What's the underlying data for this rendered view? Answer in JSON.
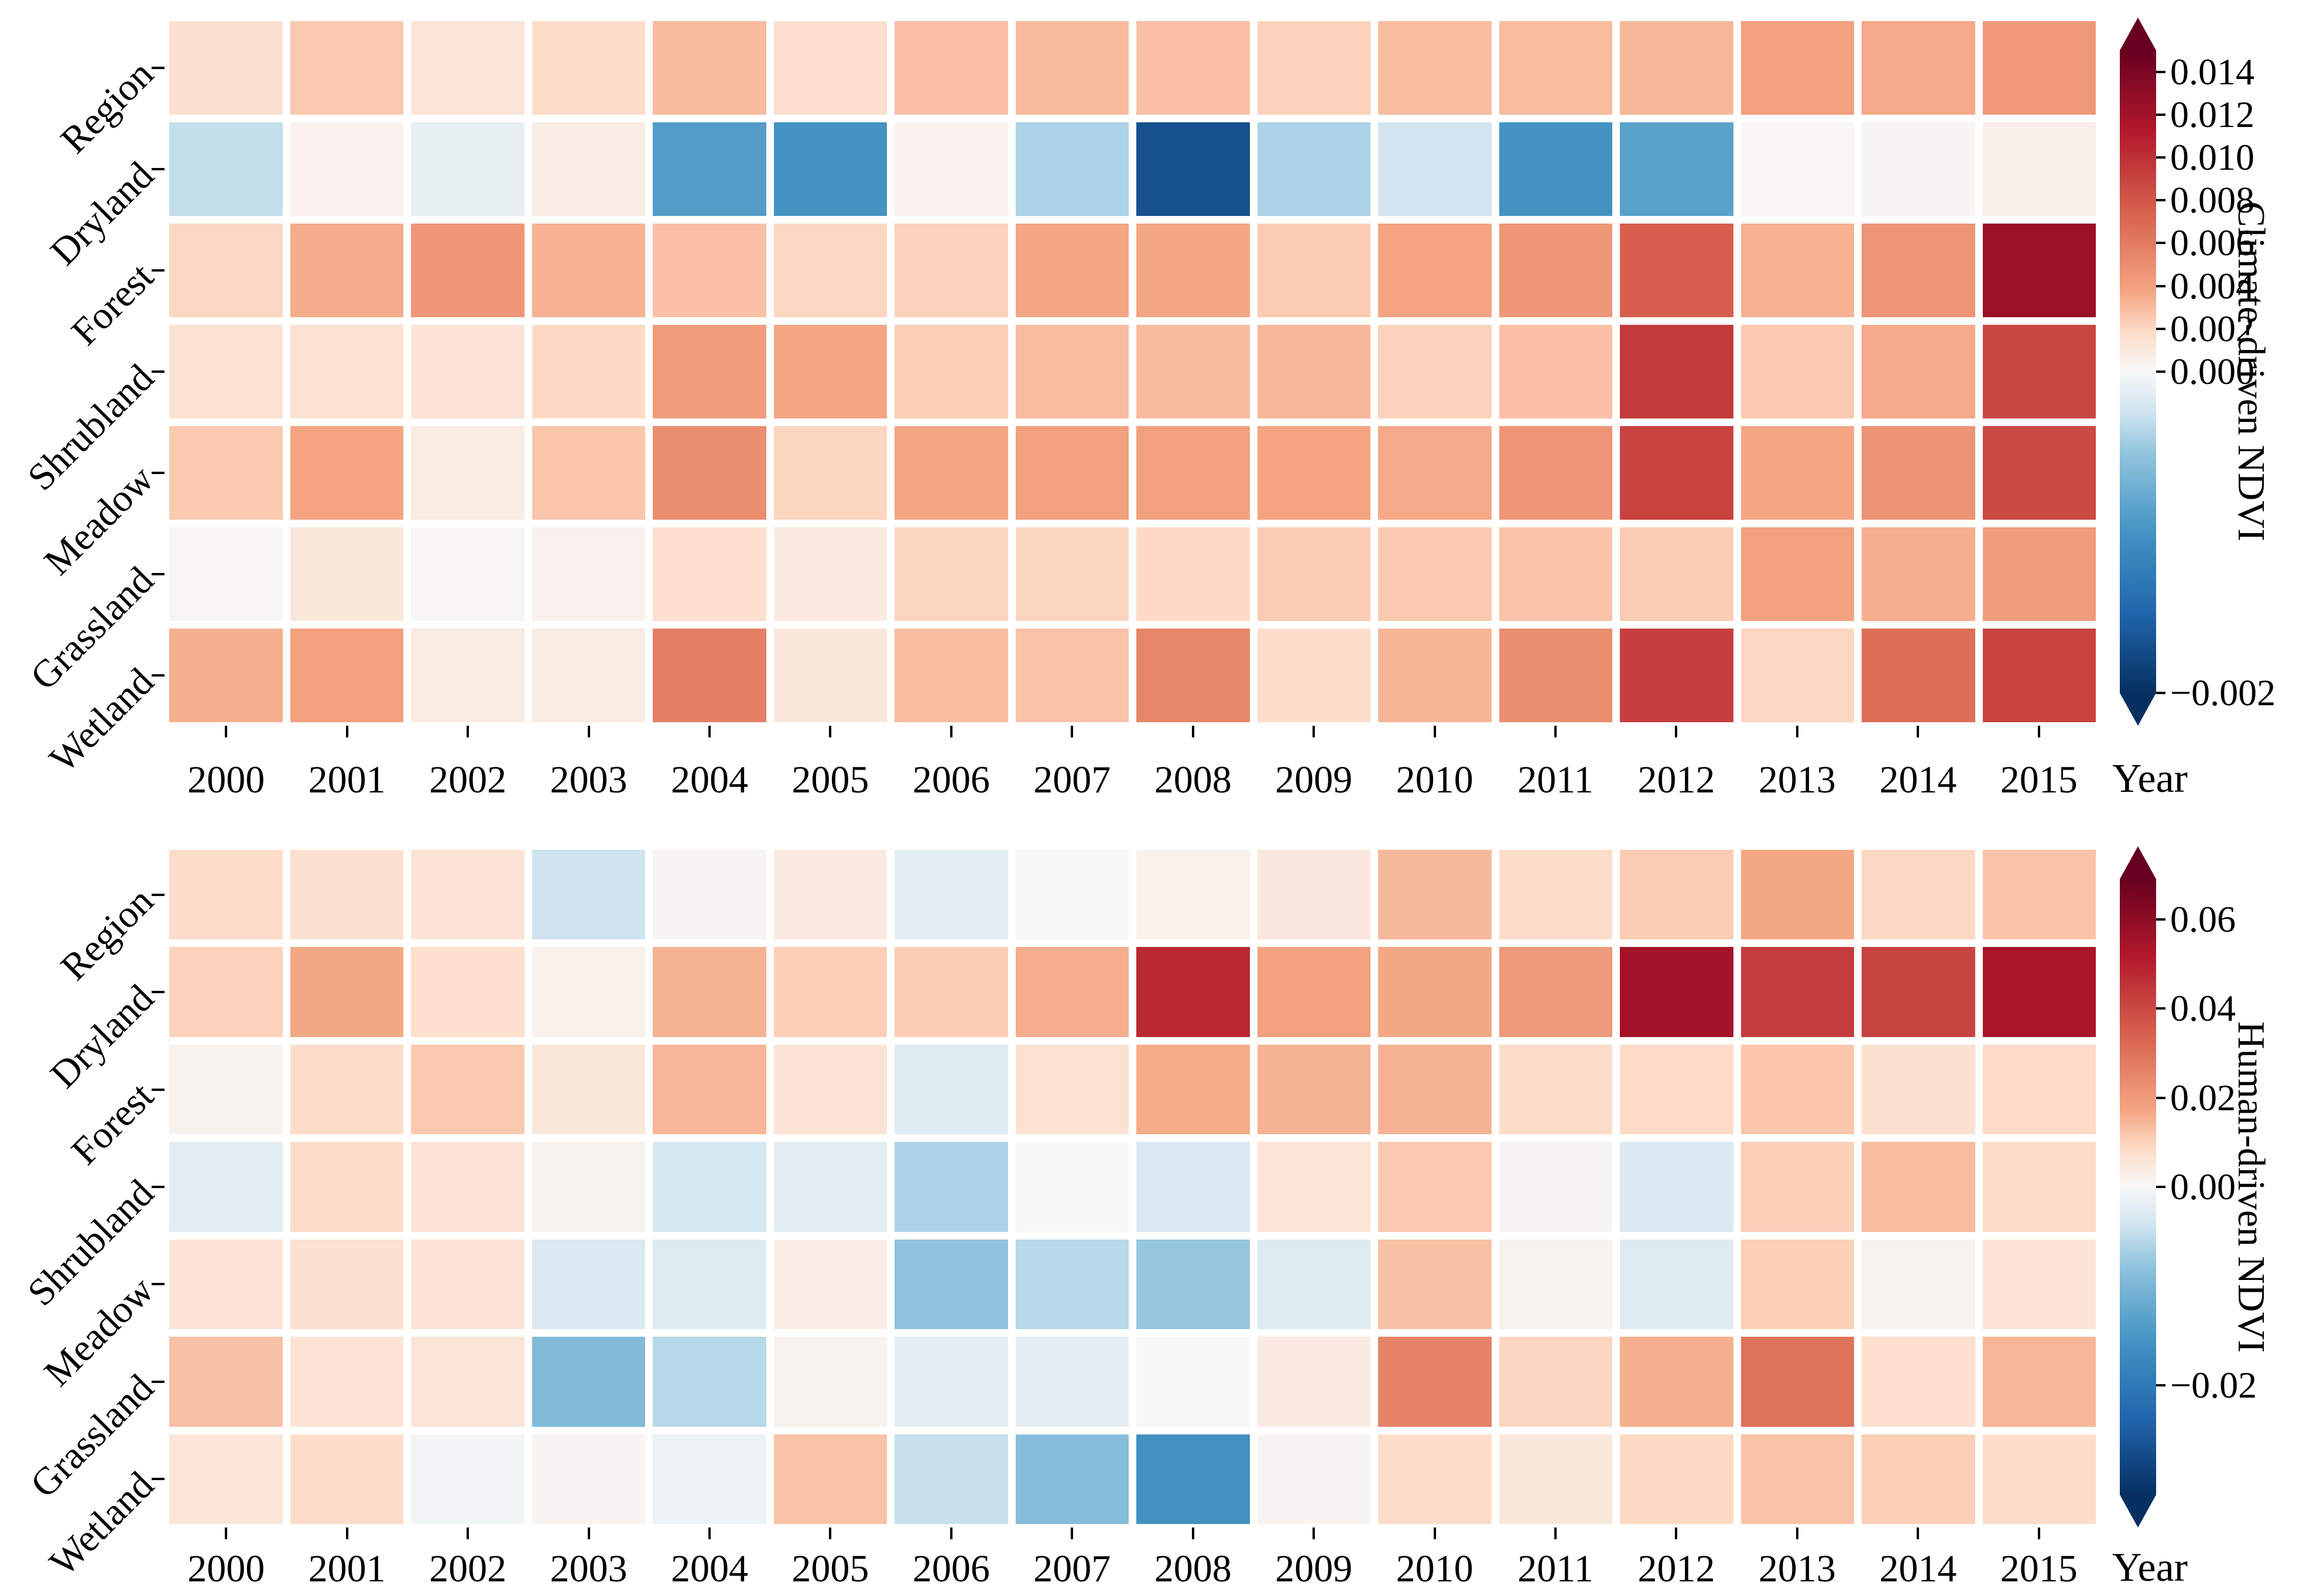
{
  "palette": {
    "colormap": "RdBu_r",
    "background": "#ffffff",
    "text_color": "#000000",
    "anchors": [
      {
        "t": 0.0,
        "color": "#053061"
      },
      {
        "t": 0.125,
        "color": "#2166ac"
      },
      {
        "t": 0.25,
        "color": "#4393c3"
      },
      {
        "t": 0.375,
        "color": "#92c5de"
      },
      {
        "t": 0.4375,
        "color": "#d1e5f0"
      },
      {
        "t": 0.5,
        "color": "#f7f7f7"
      },
      {
        "t": 0.5625,
        "color": "#fddbc7"
      },
      {
        "t": 0.625,
        "color": "#f4a582"
      },
      {
        "t": 0.75,
        "color": "#d6604d"
      },
      {
        "t": 0.875,
        "color": "#b2182b"
      },
      {
        "t": 1.0,
        "color": "#67001f"
      }
    ]
  },
  "chart_data": [
    {
      "type": "heatmap",
      "title": "",
      "xlabel": "Year",
      "x": [
        "2000",
        "2001",
        "2002",
        "2003",
        "2004",
        "2005",
        "2006",
        "2007",
        "2008",
        "2009",
        "2010",
        "2011",
        "2012",
        "2013",
        "2014",
        "2015"
      ],
      "rows": [
        "Region",
        "Dryland",
        "Forest",
        "Shrubland",
        "Meadow",
        "Grassland",
        "Wetland"
      ],
      "series": [
        {
          "name": "Region",
          "values": [
            0.0015,
            0.0025,
            0.0012,
            0.0018,
            0.003,
            0.0016,
            0.0028,
            0.003,
            0.0028,
            0.0022,
            0.0029,
            0.0029,
            0.0031,
            0.004,
            0.0036,
            0.0044
          ]
        },
        {
          "name": "Dryland",
          "values": [
            -0.0003,
            0.0004,
            -0.0001,
            0.0007,
            -0.0009,
            -0.001,
            0.0004,
            -0.0004,
            -0.0017,
            -0.0004,
            -0.00025,
            -0.001,
            -0.00085,
            0.0001,
            0.00015,
            0.0006
          ]
        },
        {
          "name": "Forest",
          "values": [
            0.002,
            0.0035,
            0.0045,
            0.0033,
            0.0028,
            0.002,
            0.0022,
            0.0037,
            0.0037,
            0.0024,
            0.0038,
            0.0045,
            0.0075,
            0.0033,
            0.0046,
            0.0125
          ]
        },
        {
          "name": "Shrubland",
          "values": [
            0.0014,
            0.0014,
            0.0013,
            0.0019,
            0.0042,
            0.0037,
            0.0023,
            0.0029,
            0.003,
            0.0031,
            0.0022,
            0.0028,
            0.0095,
            0.0025,
            0.0036,
            0.0088
          ]
        },
        {
          "name": "Meadow",
          "values": [
            0.0025,
            0.0038,
            0.0008,
            0.0026,
            0.005,
            0.0021,
            0.0037,
            0.004,
            0.004,
            0.0038,
            0.0036,
            0.0046,
            0.009,
            0.0037,
            0.0047,
            0.0087
          ]
        },
        {
          "name": "Grassland",
          "values": [
            0.0001,
            0.001,
            0.0001,
            0.0004,
            0.0016,
            0.0009,
            0.0021,
            0.0021,
            0.0019,
            0.0024,
            0.0025,
            0.0027,
            0.0024,
            0.004,
            0.0034,
            0.0042
          ]
        },
        {
          "name": "Wetland",
          "values": [
            0.0034,
            0.004,
            0.0008,
            0.0008,
            0.0058,
            0.001,
            0.0029,
            0.0027,
            0.0055,
            0.0017,
            0.0032,
            0.005,
            0.0092,
            0.002,
            0.0068,
            0.009
          ]
        }
      ],
      "colorbar": {
        "label": "Climate-driven NDVI",
        "vmin": -0.002,
        "vcenter": 0,
        "vmax": 0.015,
        "ticks": [
          0.014,
          0.012,
          0.01,
          0.008,
          0.006,
          0.004,
          0.002,
          0.0,
          -0.002
        ],
        "tick_labels": [
          "0.014",
          "0.012",
          "0.010",
          "0.008",
          "0.006",
          "0.004",
          "0.002",
          "0.000",
          "−0.002"
        ],
        "extend": "both"
      },
      "grid": false,
      "legend_position": "right-colorbar"
    },
    {
      "type": "heatmap",
      "title": "",
      "xlabel": "Year",
      "x": [
        "2000",
        "2001",
        "2002",
        "2003",
        "2004",
        "2005",
        "2006",
        "2007",
        "2008",
        "2009",
        "2010",
        "2011",
        "2012",
        "2013",
        "2014",
        "2015"
      ],
      "rows": [
        "Region",
        "Dryland",
        "Forest",
        "Shrubland",
        "Meadow",
        "Grassland",
        "Wetland"
      ],
      "series": [
        {
          "name": "Region",
          "values": [
            0.008,
            0.007,
            0.006,
            -0.004,
            0.0005,
            0.004,
            -0.002,
            0.0,
            0.002,
            0.0045,
            0.014,
            0.008,
            0.011,
            0.017,
            0.009,
            0.0125
          ]
        },
        {
          "name": "Dryland",
          "values": [
            0.01,
            0.017,
            0.0075,
            0.002,
            0.015,
            0.0105,
            0.011,
            0.016,
            0.048,
            0.018,
            0.017,
            0.02,
            0.055,
            0.043,
            0.0415,
            0.054
          ]
        },
        {
          "name": "Forest",
          "values": [
            0.0015,
            0.008,
            0.0115,
            0.005,
            0.0145,
            0.006,
            -0.0025,
            0.0065,
            0.0165,
            0.015,
            0.015,
            0.008,
            0.0085,
            0.012,
            0.007,
            0.0085
          ]
        },
        {
          "name": "Shrubland",
          "values": [
            -0.002,
            0.008,
            0.006,
            0.0015,
            -0.0035,
            -0.002,
            -0.006,
            0.0,
            -0.003,
            0.0055,
            0.0115,
            0.0005,
            -0.003,
            0.0105,
            0.0135,
            0.008
          ]
        },
        {
          "name": "Meadow",
          "values": [
            0.006,
            0.007,
            0.006,
            -0.003,
            -0.0025,
            0.003,
            -0.008,
            -0.0055,
            -0.0075,
            -0.0025,
            0.013,
            0.0015,
            -0.0025,
            0.0105,
            0.0015,
            0.006
          ]
        },
        {
          "name": "Grassland",
          "values": [
            0.013,
            0.006,
            0.0055,
            -0.0095,
            -0.0055,
            0.0015,
            -0.002,
            -0.002,
            0.0,
            0.004,
            0.026,
            0.0095,
            0.0155,
            0.03,
            0.0075,
            0.0145
          ]
        },
        {
          "name": "Wetland",
          "values": [
            0.0055,
            0.008,
            -0.0005,
            0.001,
            -0.001,
            0.0125,
            -0.0045,
            -0.009,
            -0.016,
            0.001,
            0.008,
            0.005,
            0.009,
            0.0125,
            0.0105,
            0.008
          ]
        }
      ],
      "colorbar": {
        "label": "Human-driven NDVI",
        "vmin": -0.031,
        "vcenter": 0,
        "vmax": 0.069,
        "ticks": [
          0.06,
          0.04,
          0.02,
          0.0,
          -0.02
        ],
        "tick_labels": [
          "0.06",
          "0.04",
          "0.02",
          "0.00",
          "−0.02"
        ],
        "extend": "both"
      },
      "grid": false,
      "legend_position": "right-colorbar"
    }
  ]
}
